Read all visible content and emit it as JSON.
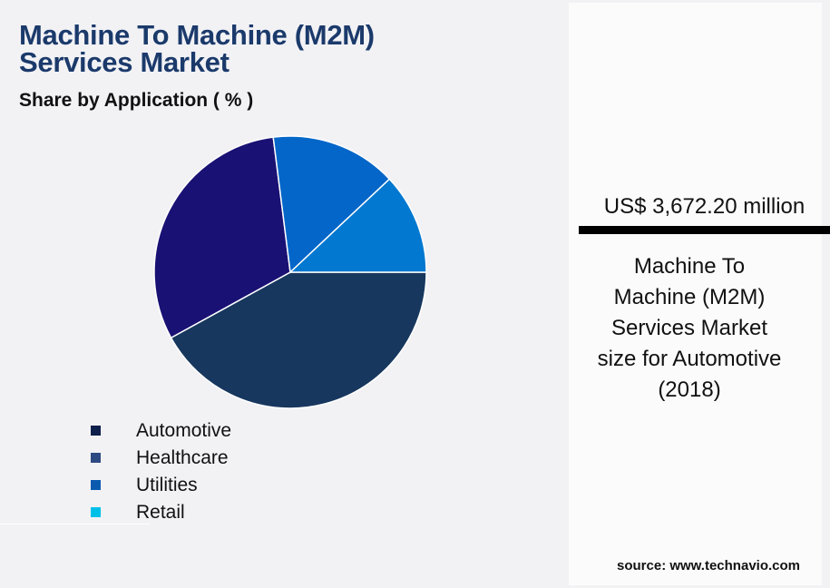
{
  "header": {
    "title_line1": "Machine To Machine (M2M)",
    "title_line2": "Services Market",
    "subtitle": "Share by Application ( % )"
  },
  "legend": {
    "items": [
      {
        "label": "Automotive",
        "color": "#0d1f4a"
      },
      {
        "label": "Healthcare",
        "color": "#2e4a82"
      },
      {
        "label": "Utilities",
        "color": "#0a5bb0"
      },
      {
        "label": "Retail",
        "color": "#00c0e8"
      }
    ]
  },
  "panel": {
    "value": "US$ 3,672.20 million",
    "description": "Machine To Machine (M2M) Services Market size for Automotive (2018)",
    "desc_lines": [
      "Machine To",
      "Machine (M2M)",
      "Services Market",
      "size for Automotive",
      "(2018)"
    ]
  },
  "footer": {
    "source": "source: www.technavio.com"
  },
  "chart_data": {
    "type": "pie",
    "title": "Machine To Machine (M2M) Services Market",
    "subtitle": "Share by Application ( % )",
    "categories": [
      "Automotive",
      "Healthcare",
      "Utilities",
      "Retail"
    ],
    "values": [
      42,
      31,
      15,
      12
    ],
    "slice_colors": [
      "#17375e",
      "#1a1174",
      "#0466c8",
      "#0278d0"
    ],
    "legend_position": "bottom-left",
    "start_angle_deg": 0,
    "direction": "clockwise-from-3-oclock"
  }
}
